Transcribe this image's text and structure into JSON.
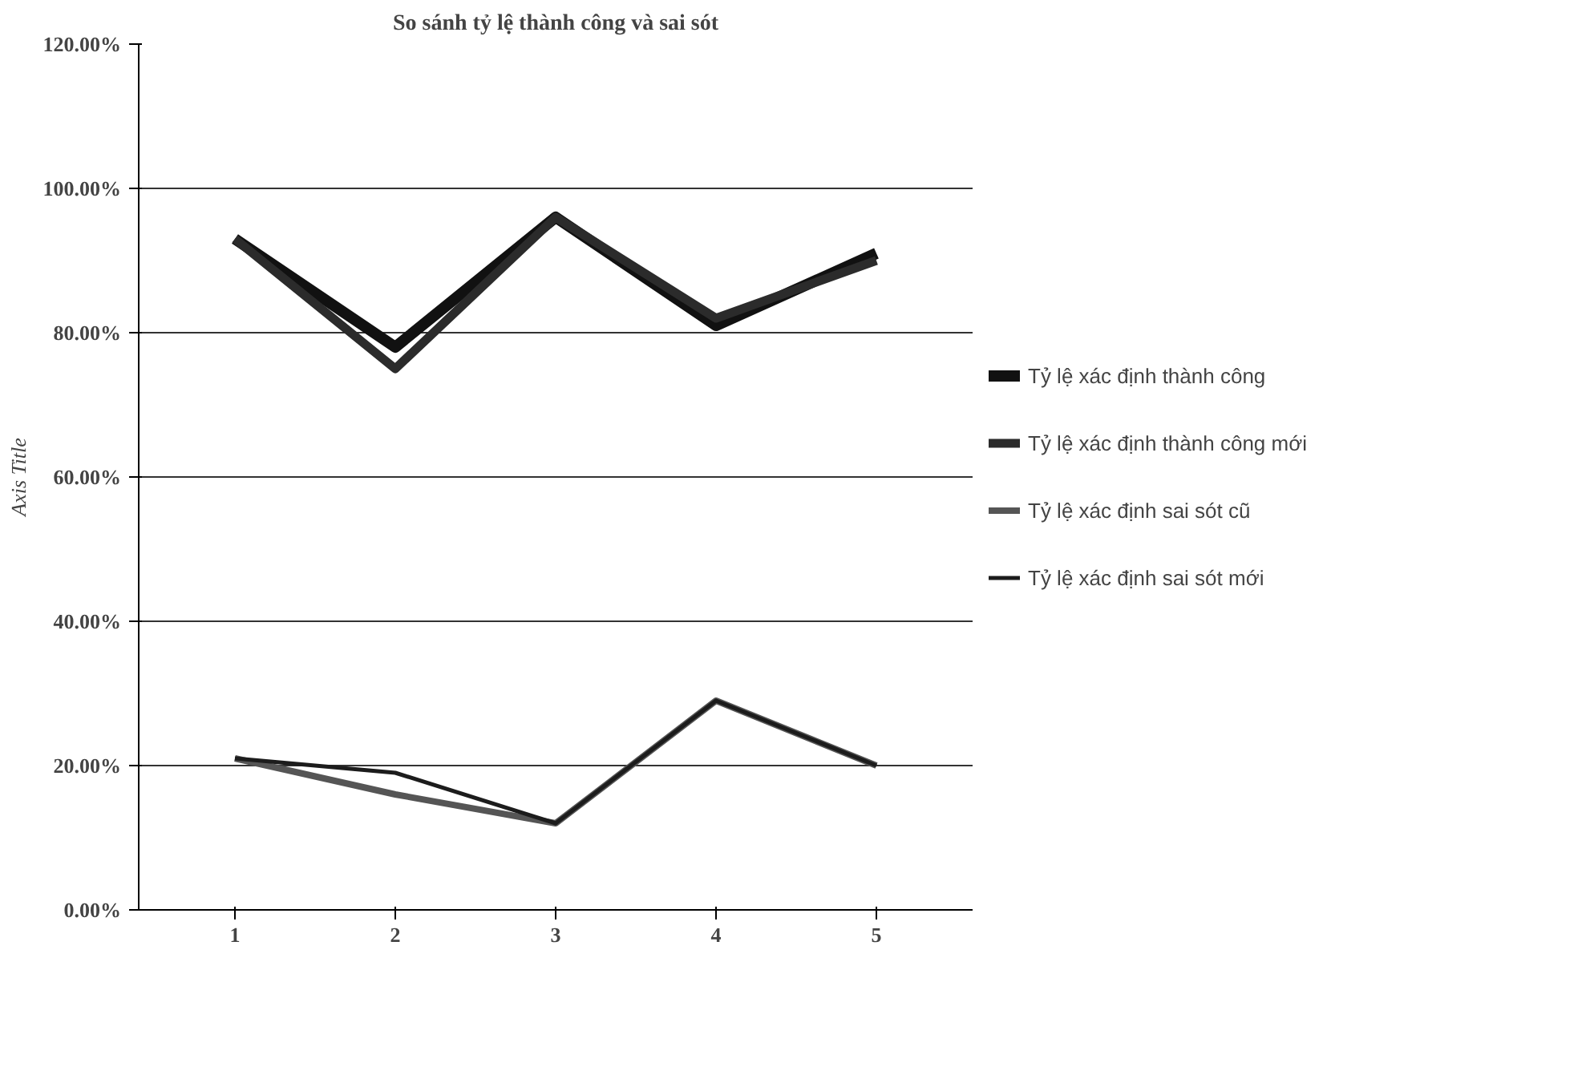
{
  "chart_data": {
    "type": "line",
    "title": "So sánh tỷ lệ thành công và sai sót",
    "ylabel": "Axis Title",
    "categories": [
      "1",
      "2",
      "3",
      "4",
      "5"
    ],
    "series": [
      {
        "name": "Tỷ lệ xác định thành công",
        "color": "#111111",
        "values": [
          93,
          78,
          96,
          81,
          91
        ]
      },
      {
        "name": "Tỷ lệ xác định thành công mới",
        "color": "#2b2b2b",
        "values": [
          93,
          75,
          96,
          82,
          90
        ]
      },
      {
        "name": "Tỷ lệ xác định sai sót cũ",
        "color": "#555555",
        "values": [
          21,
          16,
          12,
          29,
          20
        ]
      },
      {
        "name": "Tỷ lệ xác định sai sót mới",
        "color": "#1c1c1c",
        "values": [
          21,
          19,
          12,
          29,
          20
        ]
      }
    ],
    "ylim": [
      0,
      120
    ],
    "yticks": [
      {
        "value": 0,
        "label": "0.00%"
      },
      {
        "value": 20,
        "label": "20.00%"
      },
      {
        "value": 40,
        "label": "40.00%"
      },
      {
        "value": 60,
        "label": "60.00%"
      },
      {
        "value": 80,
        "label": "80.00%"
      },
      {
        "value": 100,
        "label": "100.00%"
      },
      {
        "value": 120,
        "label": "120.00%"
      }
    ],
    "grid": "y",
    "legend": "right",
    "marker": "none",
    "line_style": "solid"
  }
}
